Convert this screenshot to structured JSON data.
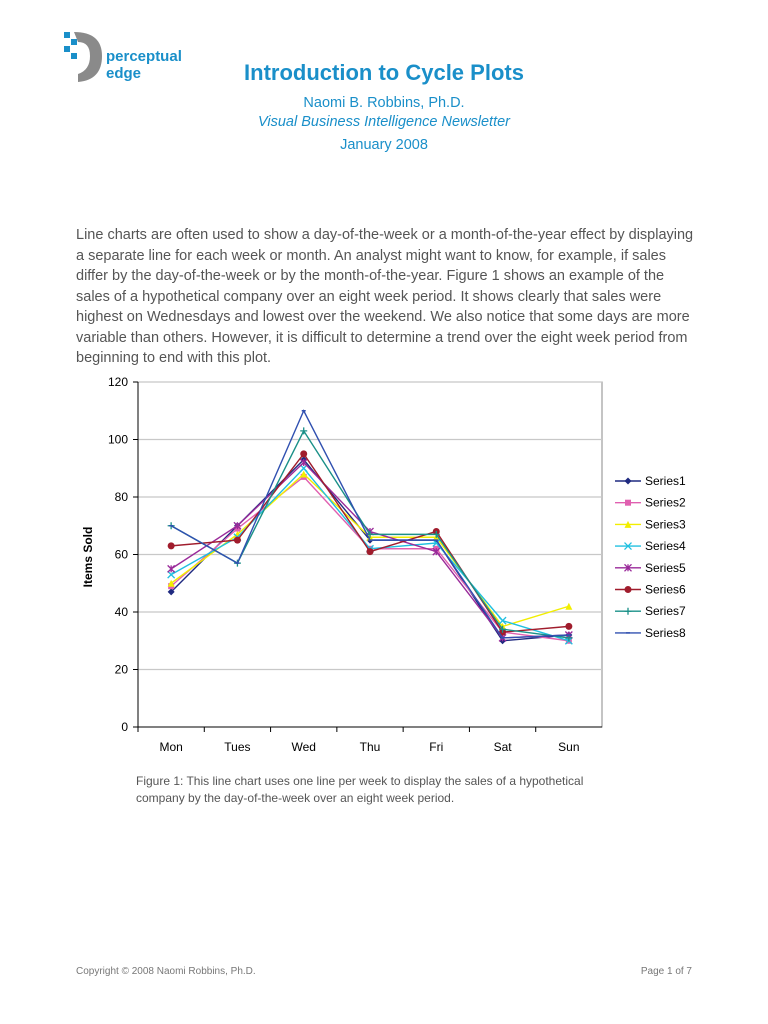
{
  "logo": {
    "line1": "perceptual",
    "line2": "edge",
    "colors": {
      "blue": "#1a8fc9",
      "gray": "#8a8a8a"
    }
  },
  "header": {
    "title": "Introduction to Cycle Plots",
    "author": "Naomi B. Robbins, Ph.D.",
    "publication": "Visual Business Intelligence Newsletter",
    "date": "January 2008"
  },
  "body": {
    "paragraph": "Line charts are often used to show a day-of-the-week or a month-of-the-year effect by displaying a separate line for each week or month. An analyst might want to know, for example, if sales differ by the day-of-the-week or by the month-of-the-year. Figure 1 shows an example of the sales of a hypothetical company over an eight week period. It shows clearly that sales were highest on Wednesdays and lowest over the weekend. We also notice that some days are more variable than others. However, it is difficult to determine a trend over the eight week period from beginning to end with this plot."
  },
  "chart_data": {
    "type": "line",
    "title": "",
    "xlabel": "",
    "ylabel": "Items Sold",
    "ylim": [
      0,
      120
    ],
    "yticks": [
      0,
      20,
      40,
      60,
      80,
      100,
      120
    ],
    "grid": true,
    "legend": "right",
    "categories": [
      "Mon",
      "Tues",
      "Wed",
      "Thu",
      "Fri",
      "Sat",
      "Sun"
    ],
    "series": [
      {
        "name": "Series1",
        "color": "#1f2a80",
        "marker": "diamond",
        "values": [
          47,
          70,
          93,
          65,
          65,
          30,
          32
        ]
      },
      {
        "name": "Series2",
        "color": "#e060b0",
        "marker": "square",
        "values": [
          49,
          69,
          87,
          62,
          62,
          33,
          30
        ]
      },
      {
        "name": "Series3",
        "color": "#f2ee00",
        "marker": "triangle",
        "values": [
          50,
          67,
          88,
          66,
          66,
          35,
          42
        ]
      },
      {
        "name": "Series4",
        "color": "#20c0e0",
        "marker": "x",
        "values": [
          53,
          66,
          90,
          62,
          64,
          37,
          30
        ]
      },
      {
        "name": "Series5",
        "color": "#9a2a9a",
        "marker": "star",
        "values": [
          55,
          70,
          92,
          68,
          61,
          31,
          32
        ]
      },
      {
        "name": "Series6",
        "color": "#a01c2c",
        "marker": "circle",
        "values": [
          63,
          65,
          95,
          61,
          68,
          33,
          35
        ]
      },
      {
        "name": "Series7",
        "color": "#1a9088",
        "marker": "plus",
        "values": [
          70,
          57,
          103,
          67,
          67,
          34,
          31
        ]
      },
      {
        "name": "Series8",
        "color": "#3050b0",
        "marker": "dash",
        "values": [
          70,
          57,
          110,
          65,
          65,
          31,
          32
        ]
      }
    ]
  },
  "caption": "Figure 1: This line chart uses one line per week to display the sales of a hypothetical company by the day-of-the-week over an eight week period.",
  "footer": {
    "copyright": "Copyright © 2008 Naomi Robbins, Ph.D.",
    "page": "Page 1 of 7"
  }
}
